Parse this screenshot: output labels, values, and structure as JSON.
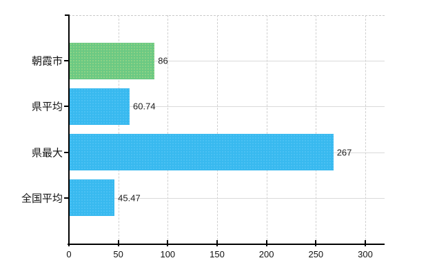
{
  "chart_data": {
    "type": "bar",
    "orientation": "horizontal",
    "title": "",
    "categories": [
      "朝霞市",
      "県平均",
      "県最大",
      "全国平均"
    ],
    "values": [
      86,
      60.74,
      267,
      45.47
    ],
    "value_labels": [
      "86",
      "60.74",
      "267",
      "45.47"
    ],
    "bar_colors": [
      "#6bc983",
      "#38b9ef",
      "#38b9ef",
      "#38b9ef"
    ],
    "xlim": [
      0,
      320
    ],
    "xticks": [
      0,
      50,
      100,
      150,
      200,
      250,
      300
    ],
    "grid": true,
    "legend": false,
    "background": "#ffffff",
    "colors": {
      "highlight_bar": "#6bc983",
      "default_bar": "#38b9ef",
      "gridline": "#d9d9d9",
      "axis": "#000000",
      "text": "#111111"
    }
  }
}
